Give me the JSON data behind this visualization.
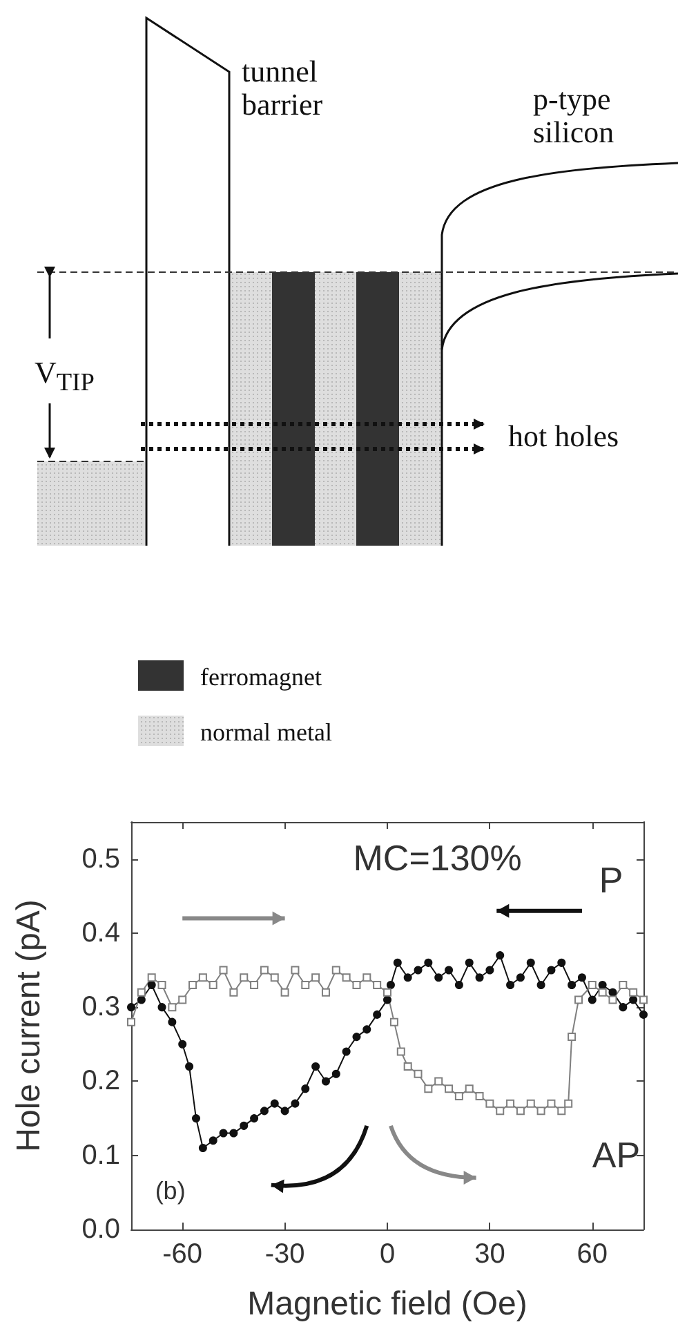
{
  "chart_data": {
    "type": "line",
    "xlabel": "Magnetic field (Oe)",
    "ylabel": "Hole current (pA)",
    "xlim": [
      -75,
      75
    ],
    "xticks": [
      -60,
      -30,
      0,
      30,
      60
    ],
    "ylim": [
      0,
      0.55
    ],
    "yticks": [
      {
        "value": 0,
        "label": "0.0"
      },
      0.1,
      0.2,
      0.3,
      0.4,
      0.5
    ],
    "annotations": [
      "tunnel barrier",
      "p-type silicon",
      "V$_{TIP}$",
      "hot holes",
      "ferromagnet",
      "normal metal",
      "MC=130%",
      "P",
      "AP",
      "(b)"
    ],
    "series": [
      {
        "color": "#111111",
        "marker": "circle",
        "x": [
          75,
          72,
          69,
          66,
          63,
          60,
          57,
          54,
          51,
          48,
          45,
          42,
          39,
          36,
          33,
          30,
          27,
          24,
          21,
          18,
          15,
          12,
          9,
          6,
          3,
          1,
          0,
          -3,
          -6,
          -9,
          -12,
          -15,
          -18,
          -21,
          -24,
          -27,
          -30,
          -33,
          -36,
          -39,
          -42,
          -45,
          -48,
          -51,
          -54,
          -56,
          -58,
          -60,
          -63,
          -66,
          -69,
          -72,
          -75
        ],
        "values": [
          0.29,
          0.31,
          0.3,
          0.32,
          0.33,
          0.31,
          0.34,
          0.33,
          0.36,
          0.35,
          0.33,
          0.36,
          0.34,
          0.33,
          0.37,
          0.35,
          0.34,
          0.36,
          0.33,
          0.35,
          0.34,
          0.36,
          0.35,
          0.34,
          0.36,
          0.33,
          0.31,
          0.29,
          0.27,
          0.26,
          0.24,
          0.21,
          0.2,
          0.22,
          0.19,
          0.17,
          0.16,
          0.17,
          0.16,
          0.15,
          0.14,
          0.13,
          0.13,
          0.12,
          0.11,
          0.15,
          0.22,
          0.25,
          0.28,
          0.3,
          0.33,
          0.31,
          0.3
        ]
      },
      {
        "color": "#7f7f7f",
        "marker": "square",
        "x": [
          -75,
          -72,
          -69,
          -66,
          -63,
          -60,
          -57,
          -54,
          -51,
          -48,
          -45,
          -42,
          -39,
          -36,
          -33,
          -30,
          -27,
          -24,
          -21,
          -18,
          -15,
          -12,
          -9,
          -6,
          -3,
          0,
          2,
          4,
          6,
          9,
          12,
          15,
          18,
          21,
          24,
          27,
          30,
          33,
          36,
          39,
          42,
          45,
          48,
          51,
          53,
          54,
          56,
          60,
          63,
          66,
          69,
          72,
          75
        ],
        "values": [
          0.28,
          0.32,
          0.34,
          0.33,
          0.3,
          0.31,
          0.33,
          0.34,
          0.33,
          0.35,
          0.32,
          0.34,
          0.33,
          0.35,
          0.34,
          0.32,
          0.35,
          0.33,
          0.34,
          0.32,
          0.35,
          0.34,
          0.33,
          0.34,
          0.33,
          0.32,
          0.28,
          0.24,
          0.22,
          0.21,
          0.19,
          0.2,
          0.19,
          0.18,
          0.19,
          0.18,
          0.17,
          0.16,
          0.17,
          0.16,
          0.17,
          0.16,
          0.17,
          0.16,
          0.17,
          0.26,
          0.31,
          0.33,
          0.32,
          0.31,
          0.33,
          0.32,
          0.31
        ]
      }
    ]
  }
}
